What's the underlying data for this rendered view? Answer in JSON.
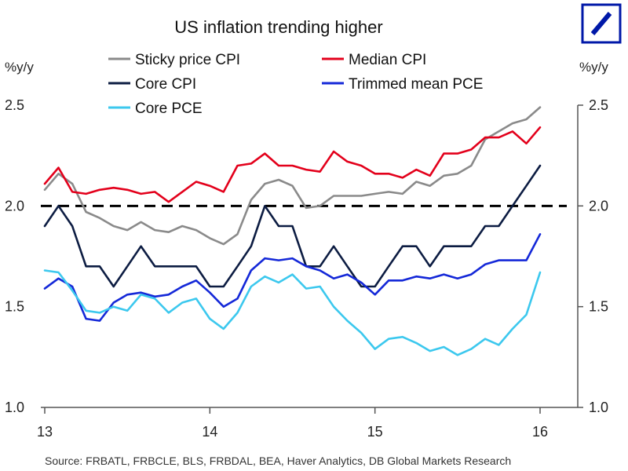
{
  "logo": {
    "color": "#0018A8"
  },
  "chart_data": {
    "type": "line",
    "title": "US inflation trending higher",
    "y_unit_left": "%y/y",
    "y_unit_right": "%y/y",
    "source": "Source: FRBATL, FRBCLE, BLS, FRBDAL, BEA, Haver Analytics, DB Global Markets Research",
    "xlim": [
      13,
      16.1
    ],
    "ylim": [
      1.0,
      2.5
    ],
    "x_ticks": [
      13,
      14,
      15,
      16
    ],
    "x_tick_labels": [
      "13",
      "14",
      "15",
      "16"
    ],
    "y_ticks": [
      1.0,
      1.5,
      2.0,
      2.5
    ],
    "y_tick_labels": [
      "1.0",
      "1.5",
      "2.0",
      "2.5"
    ],
    "grid": false,
    "legend_position": "top",
    "reference_line": {
      "y": 2.0,
      "style": "dashed",
      "color": "#000000"
    },
    "series": [
      {
        "name": "Sticky price CPI",
        "color": "#8a8a8a",
        "x": [
          13.0,
          13.083,
          13.167,
          13.25,
          13.333,
          13.417,
          13.5,
          13.583,
          13.667,
          13.75,
          13.833,
          13.917,
          14.0,
          14.083,
          14.167,
          14.25,
          14.333,
          14.417,
          14.5,
          14.583,
          14.667,
          14.75,
          14.833,
          14.917,
          15.0,
          15.083,
          15.167,
          15.25,
          15.333,
          15.417,
          15.5,
          15.583,
          15.667,
          15.75,
          15.833,
          15.917,
          16.0
        ],
        "values": [
          2.08,
          2.16,
          2.11,
          1.97,
          1.94,
          1.9,
          1.88,
          1.92,
          1.88,
          1.87,
          1.9,
          1.88,
          1.84,
          1.81,
          1.86,
          2.03,
          2.11,
          2.13,
          2.1,
          1.99,
          2.0,
          2.05,
          2.05,
          2.05,
          2.06,
          2.07,
          2.06,
          2.12,
          2.1,
          2.15,
          2.16,
          2.2,
          2.33,
          2.37,
          2.41,
          2.43,
          2.49
        ]
      },
      {
        "name": "Median CPI",
        "color": "#e3001b",
        "x": [
          13.0,
          13.083,
          13.167,
          13.25,
          13.333,
          13.417,
          13.5,
          13.583,
          13.667,
          13.75,
          13.833,
          13.917,
          14.0,
          14.083,
          14.167,
          14.25,
          14.333,
          14.417,
          14.5,
          14.583,
          14.667,
          14.75,
          14.833,
          14.917,
          15.0,
          15.083,
          15.167,
          15.25,
          15.333,
          15.417,
          15.5,
          15.583,
          15.667,
          15.75,
          15.833,
          15.917,
          16.0
        ],
        "values": [
          2.11,
          2.19,
          2.07,
          2.06,
          2.08,
          2.09,
          2.08,
          2.06,
          2.07,
          2.02,
          2.07,
          2.12,
          2.1,
          2.07,
          2.2,
          2.21,
          2.26,
          2.2,
          2.2,
          2.18,
          2.17,
          2.27,
          2.22,
          2.2,
          2.16,
          2.16,
          2.14,
          2.18,
          2.15,
          2.26,
          2.26,
          2.28,
          2.34,
          2.34,
          2.37,
          2.31,
          2.39
        ]
      },
      {
        "name": "Core CPI",
        "color": "#0c1c42",
        "x": [
          13.0,
          13.083,
          13.167,
          13.25,
          13.333,
          13.417,
          13.5,
          13.583,
          13.667,
          13.75,
          13.833,
          13.917,
          14.0,
          14.083,
          14.167,
          14.25,
          14.333,
          14.417,
          14.5,
          14.583,
          14.667,
          14.75,
          14.833,
          14.917,
          15.0,
          15.083,
          15.167,
          15.25,
          15.333,
          15.417,
          15.5,
          15.583,
          15.667,
          15.75,
          15.833,
          15.917,
          16.0
        ],
        "values": [
          1.9,
          2.0,
          1.9,
          1.7,
          1.7,
          1.6,
          1.7,
          1.8,
          1.7,
          1.7,
          1.7,
          1.7,
          1.6,
          1.6,
          1.7,
          1.8,
          2.0,
          1.9,
          1.9,
          1.7,
          1.7,
          1.8,
          1.7,
          1.6,
          1.6,
          1.7,
          1.8,
          1.8,
          1.7,
          1.8,
          1.8,
          1.8,
          1.9,
          1.9,
          2.0,
          2.1,
          2.2
        ]
      },
      {
        "name": "Trimmed mean PCE",
        "color": "#1428d8",
        "x": [
          13.0,
          13.083,
          13.167,
          13.25,
          13.333,
          13.417,
          13.5,
          13.583,
          13.667,
          13.75,
          13.833,
          13.917,
          14.0,
          14.083,
          14.167,
          14.25,
          14.333,
          14.417,
          14.5,
          14.583,
          14.667,
          14.75,
          14.833,
          14.917,
          15.0,
          15.083,
          15.167,
          15.25,
          15.333,
          15.417,
          15.5,
          15.583,
          15.667,
          15.75,
          15.833,
          15.917,
          16.0
        ],
        "values": [
          1.59,
          1.64,
          1.6,
          1.44,
          1.43,
          1.52,
          1.56,
          1.57,
          1.55,
          1.56,
          1.6,
          1.63,
          1.57,
          1.5,
          1.54,
          1.68,
          1.74,
          1.73,
          1.74,
          1.7,
          1.68,
          1.64,
          1.66,
          1.62,
          1.56,
          1.63,
          1.63,
          1.65,
          1.64,
          1.66,
          1.64,
          1.66,
          1.71,
          1.73,
          1.73,
          1.73,
          1.86
        ]
      },
      {
        "name": "Core PCE",
        "color": "#3cc8ee",
        "x": [
          13.0,
          13.083,
          13.167,
          13.25,
          13.333,
          13.417,
          13.5,
          13.583,
          13.667,
          13.75,
          13.833,
          13.917,
          14.0,
          14.083,
          14.167,
          14.25,
          14.333,
          14.417,
          14.5,
          14.583,
          14.667,
          14.75,
          14.833,
          14.917,
          15.0,
          15.083,
          15.167,
          15.25,
          15.333,
          15.417,
          15.5,
          15.583,
          15.667,
          15.75,
          15.833,
          15.917,
          16.0
        ],
        "values": [
          1.68,
          1.67,
          1.58,
          1.48,
          1.47,
          1.5,
          1.48,
          1.56,
          1.54,
          1.47,
          1.52,
          1.54,
          1.44,
          1.39,
          1.47,
          1.6,
          1.65,
          1.62,
          1.66,
          1.59,
          1.6,
          1.5,
          1.43,
          1.37,
          1.29,
          1.34,
          1.35,
          1.32,
          1.28,
          1.3,
          1.26,
          1.29,
          1.34,
          1.31,
          1.39,
          1.46,
          1.67
        ]
      }
    ]
  }
}
